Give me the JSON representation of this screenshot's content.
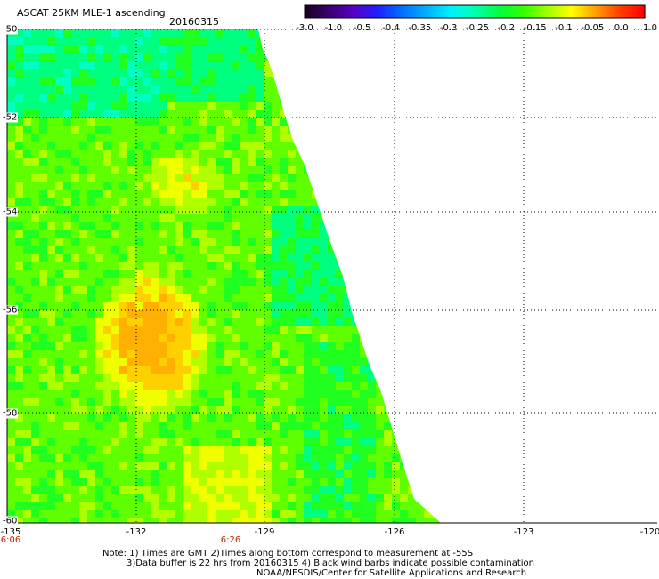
{
  "title": "ASCAT 25KM MLE-1 ascending",
  "date": "20160315",
  "colorbar": {
    "labels": [
      "-3.0",
      "-1.0",
      "-0.5",
      "-0.4",
      "-0.35",
      "-0.3",
      "-0.25",
      "-0.2",
      "-0.15",
      "-0.1",
      "-0.05",
      "0.0",
      "1.0"
    ],
    "colors": [
      "#1a0020",
      "#3a0070",
      "#5800c8",
      "#2020ff",
      "#0070ff",
      "#00b0ff",
      "#00f0ff",
      "#00ffb0",
      "#00ff40",
      "#30ff00",
      "#a0ff00",
      "#ffff00",
      "#ffa000",
      "#ff4000",
      "#ff0000"
    ]
  },
  "map": {
    "lat_labels": [
      "-50",
      "-52",
      "-54",
      "-56",
      "-58",
      "-60"
    ],
    "lon_labels": [
      "-135",
      "-132",
      "-129",
      "-126",
      "-123",
      "-120"
    ],
    "time_labels": [
      "6:06",
      "6:26"
    ]
  },
  "notes": [
    "Note: 1) Times are GMT 2)Times along bottom correspond to measurement at -55S",
    "3)Data buffer is 22 hrs from 20160315 4) Black wind barbs indicate possible contamination",
    "NOAA/NESDIS/Center for Satellite Applications and Research"
  ]
}
